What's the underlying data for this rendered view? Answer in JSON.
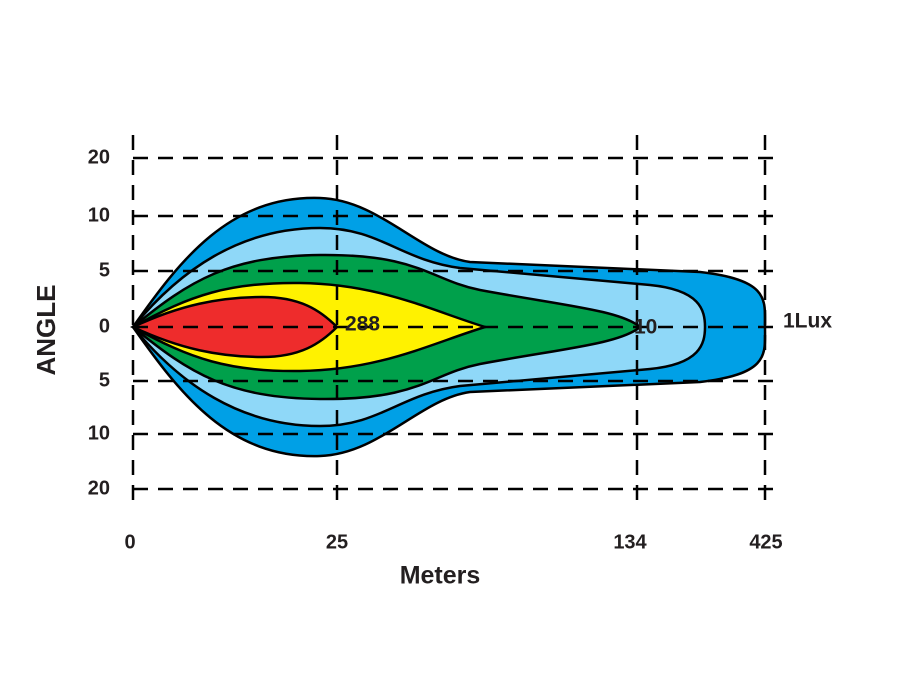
{
  "y_axis": {
    "title": "ANGLE",
    "labels": [
      "20",
      "10",
      "5",
      "0",
      "5",
      "10",
      "20"
    ]
  },
  "x_axis": {
    "title": "Meters",
    "labels": [
      "0",
      "25",
      "134",
      "425"
    ]
  },
  "annotations": [
    "288",
    "10",
    "1Lux"
  ]
}
